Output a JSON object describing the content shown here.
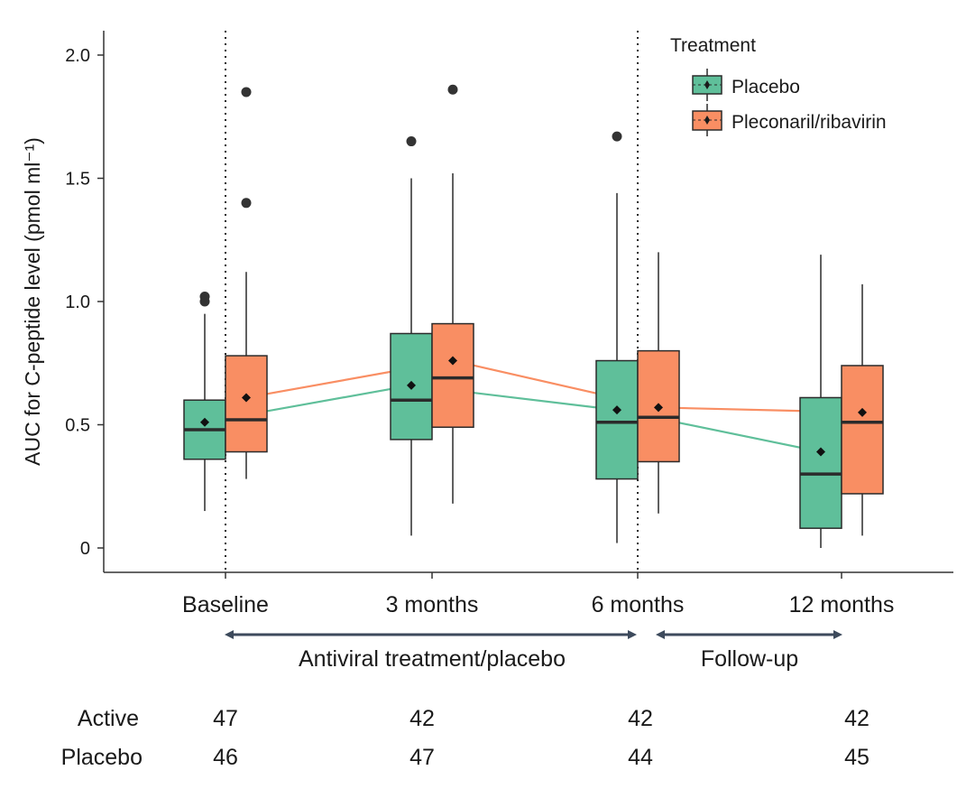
{
  "chart_data": {
    "type": "box",
    "ylabel": "AUC for C-peptide level (pmol ml⁻¹)",
    "ylim": [
      0,
      2.0
    ],
    "yticks": [
      "0",
      "0.5",
      "1.0",
      "1.5",
      "2.0"
    ],
    "categories": [
      "Baseline",
      "3 months",
      "6 months",
      "12 months"
    ],
    "legend": {
      "title": "Treatment",
      "position": "top-right"
    },
    "series": [
      {
        "name": "Placebo",
        "color": "#5fbf9a",
        "boxes": [
          {
            "whisker_low": 0.15,
            "q1": 0.36,
            "median": 0.48,
            "q3": 0.6,
            "whisker_high": 0.95,
            "mean": 0.51,
            "outliers": [
              1.0,
              1.02
            ]
          },
          {
            "whisker_low": 0.05,
            "q1": 0.44,
            "median": 0.6,
            "q3": 0.87,
            "whisker_high": 1.5,
            "mean": 0.66,
            "outliers": [
              1.65
            ]
          },
          {
            "whisker_low": 0.02,
            "q1": 0.28,
            "median": 0.51,
            "q3": 0.76,
            "whisker_high": 1.44,
            "mean": 0.56,
            "outliers": [
              1.67
            ]
          },
          {
            "whisker_low": 0.0,
            "q1": 0.08,
            "median": 0.3,
            "q3": 0.61,
            "whisker_high": 1.19,
            "mean": 0.39,
            "outliers": []
          }
        ]
      },
      {
        "name": "Pleconaril/ribavirin",
        "color": "#f98e63",
        "boxes": [
          {
            "whisker_low": 0.28,
            "q1": 0.39,
            "median": 0.52,
            "q3": 0.78,
            "whisker_high": 1.12,
            "mean": 0.61,
            "outliers": [
              1.4,
              1.85
            ]
          },
          {
            "whisker_low": 0.18,
            "q1": 0.49,
            "median": 0.69,
            "q3": 0.91,
            "whisker_high": 1.52,
            "mean": 0.76,
            "outliers": [
              1.86
            ]
          },
          {
            "whisker_low": 0.14,
            "q1": 0.35,
            "median": 0.53,
            "q3": 0.8,
            "whisker_high": 1.2,
            "mean": 0.57,
            "outliers": []
          },
          {
            "whisker_low": 0.05,
            "q1": 0.22,
            "median": 0.51,
            "q3": 0.74,
            "whisker_high": 1.07,
            "mean": 0.55,
            "outliers": []
          }
        ]
      }
    ],
    "annotations": {
      "period1": "Antiviral treatment/placebo",
      "period2": "Follow-up"
    },
    "counts": [
      {
        "label": "Active",
        "values": [
          "47",
          "42",
          "42",
          "42"
        ]
      },
      {
        "label": "Placebo",
        "values": [
          "46",
          "47",
          "44",
          "45"
        ]
      }
    ],
    "colors": {
      "axis": "#333333",
      "arrow": "#3d4a5c",
      "box_stroke": "#2b2b2b"
    }
  }
}
